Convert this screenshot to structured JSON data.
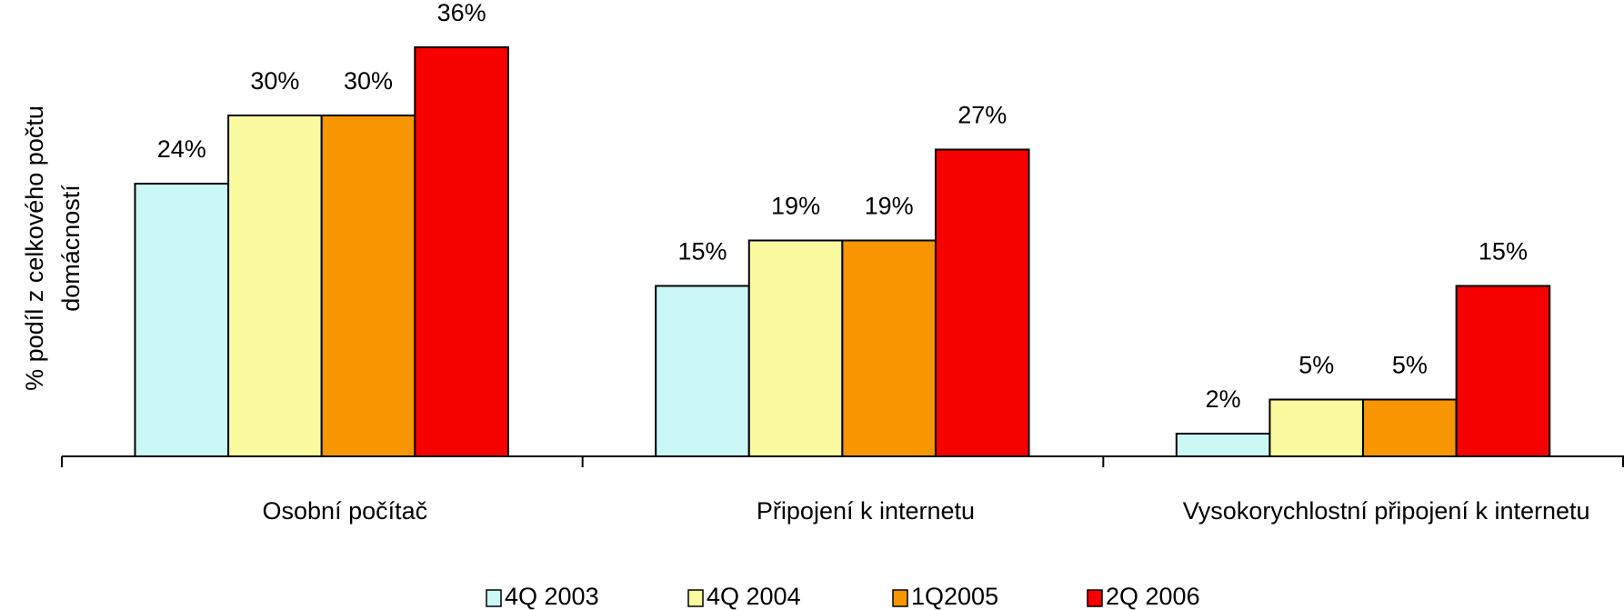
{
  "chart_data": {
    "type": "bar",
    "y_label": [
      "% podíl z celkového počtu",
      "domácností"
    ],
    "categories": [
      "Osobní počítač",
      "Připojení k internetu",
      "Vysokorychlostní připojení k internetu"
    ],
    "series": [
      {
        "name": "4Q 2003",
        "color": "#ccf7f7",
        "values": [
          24,
          15,
          2
        ],
        "value_labels": [
          "24%",
          "15%",
          "2%"
        ]
      },
      {
        "name": "4Q 2004",
        "color": "#fafaa0",
        "values": [
          30,
          19,
          5
        ],
        "value_labels": [
          "30%",
          "19%",
          "5%"
        ]
      },
      {
        "name": "1Q2005",
        "color": "#f79600",
        "values": [
          30,
          19,
          5
        ],
        "value_labels": [
          "30%",
          "19%",
          "5%"
        ]
      },
      {
        "name": "2Q 2006",
        "color": "#f70000",
        "values": [
          36,
          27,
          15
        ],
        "value_labels": [
          "36%",
          "27%",
          "15%"
        ]
      }
    ],
    "ylim": [
      0,
      36
    ],
    "legend": "bottom"
  }
}
